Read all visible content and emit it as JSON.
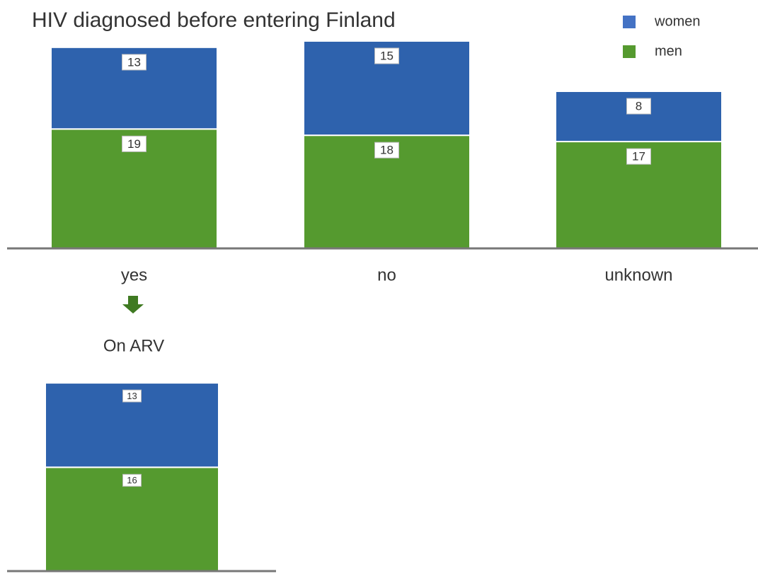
{
  "chart_data": [
    {
      "type": "stacked_bar",
      "title": "HIV diagnosed before entering Finland",
      "categories": [
        "yes",
        "no",
        "unknown"
      ],
      "series": [
        {
          "name": "men",
          "color": "#559a2f",
          "values": [
            19,
            18,
            17
          ]
        },
        {
          "name": "women",
          "color": "#2e62ad",
          "values": [
            13,
            15,
            8
          ]
        }
      ],
      "legend": "top-right"
    },
    {
      "type": "stacked_bar",
      "title": "On ARV",
      "categories": [
        null
      ],
      "series": [
        {
          "name": "men",
          "color": "#559a2f",
          "values": [
            16
          ]
        },
        {
          "name": "women",
          "color": "#2e62ad",
          "values": [
            13
          ]
        }
      ]
    }
  ]
}
